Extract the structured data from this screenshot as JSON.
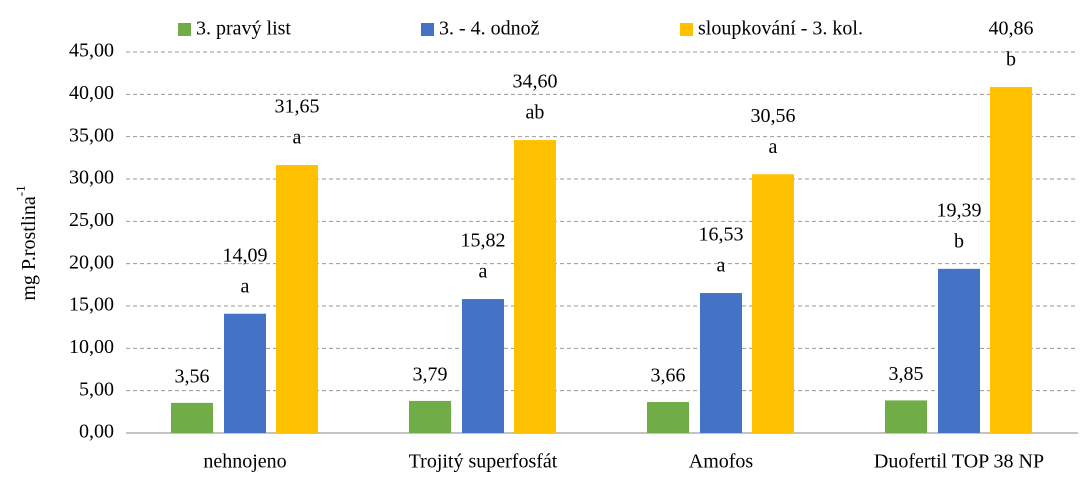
{
  "chart_data": {
    "type": "bar",
    "ylabel": "mg P.rostlina",
    "ylabel_sup": "-1",
    "categories": [
      "nehnojeno",
      "Trojitý superfosfát",
      "Amofos",
      "Duofertil TOP 38 NP"
    ],
    "series": [
      {
        "name": "3. pravý list",
        "color": "#70ad47",
        "values": [
          3.56,
          3.79,
          3.66,
          3.85
        ],
        "value_labels": [
          "3,56",
          "3,79",
          "3,66",
          "3,85"
        ]
      },
      {
        "name": "3. - 4. odnož",
        "color": "#4472c4",
        "values": [
          14.09,
          15.82,
          16.53,
          19.39
        ],
        "value_labels": [
          "14,09",
          "15,82",
          "16,53",
          "19,39"
        ],
        "letters": [
          "a",
          "a",
          "a",
          "b"
        ]
      },
      {
        "name": "sloupkování - 3. kol.",
        "color": "#ffc000",
        "values": [
          31.65,
          34.6,
          30.56,
          40.86
        ],
        "value_labels": [
          "31,65",
          "34,60",
          "30,56",
          "40,86"
        ],
        "letters": [
          "a",
          "ab",
          "a",
          "b"
        ]
      }
    ],
    "ylim": [
      0,
      45
    ],
    "yticks": [
      {
        "value": 0,
        "label": "0,00"
      },
      {
        "value": 5,
        "label": "5,00"
      },
      {
        "value": 10,
        "label": "10,00"
      },
      {
        "value": 15,
        "label": "15,00"
      },
      {
        "value": 20,
        "label": "20,00"
      },
      {
        "value": 25,
        "label": "25,00"
      },
      {
        "value": 30,
        "label": "30,00"
      },
      {
        "value": 35,
        "label": "35,00"
      },
      {
        "value": 40,
        "label": "40,00"
      },
      {
        "value": 45,
        "label": "45,00"
      }
    ],
    "grid": true,
    "legend": "top"
  }
}
